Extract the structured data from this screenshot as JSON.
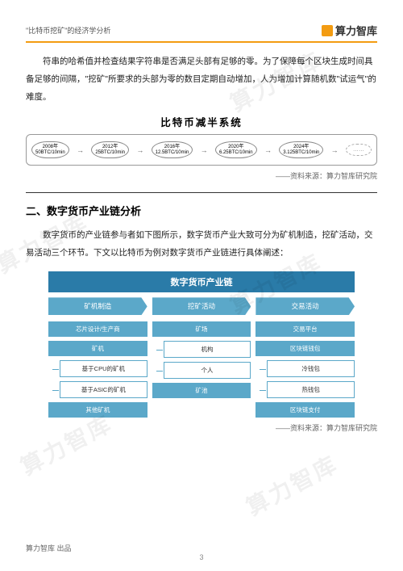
{
  "header": {
    "left": "\"比特币挖矿\"的经济学分析",
    "right": "算力智库"
  },
  "para1": "符串的哈希值并检查结果字符串是否满足头部有足够的零。为了保障每个区块生成时间具备足够的间隔，\"挖矿\"所要求的头部为零的数目定期自动增加，人为增加计算随机数\"试运气\"的难度。",
  "halving": {
    "title": "比特币减半系统",
    "items": [
      {
        "year": "2008年",
        "val": "50BTC/10min"
      },
      {
        "year": "2012年",
        "val": "25BTC/10min"
      },
      {
        "year": "2016年",
        "val": "12.5BTC/10min"
      },
      {
        "year": "2020年",
        "val": "6.25BTC/10min"
      },
      {
        "year": "2024年",
        "val": "3.125BTC/10min"
      }
    ]
  },
  "source": "——资料来源：算力智库研究院",
  "sectionH": "二、数字货币产业链分析",
  "para2": "数字货币的产业链参与者如下图所示，数字货币产业大致可分为矿机制造，挖矿活动，交易活动三个环节。下文以比特币为例对数字货币产业链进行具体阐述：",
  "chain": {
    "title": "数字货币产业链",
    "cats": [
      "矿机制造",
      "挖矿活动",
      "交易活动"
    ],
    "col1": [
      "芯片设计/生产商",
      "矿机",
      "基于CPU的矿机",
      "基于ASIC的矿机",
      "其他矿机"
    ],
    "col2": [
      "矿场",
      "机构",
      "个人",
      "矿池"
    ],
    "col3": [
      "交易平台",
      "区块链钱包",
      "冷钱包",
      "热钱包",
      "区块链支付"
    ],
    "colors": {
      "header": "#2a7ba8",
      "box": "#5ba8c9",
      "border": "#5ba8c9",
      "bg": "#ffffff"
    }
  },
  "footer": "算力智库 出品",
  "pageNum": "3",
  "watermark": "算力智库"
}
